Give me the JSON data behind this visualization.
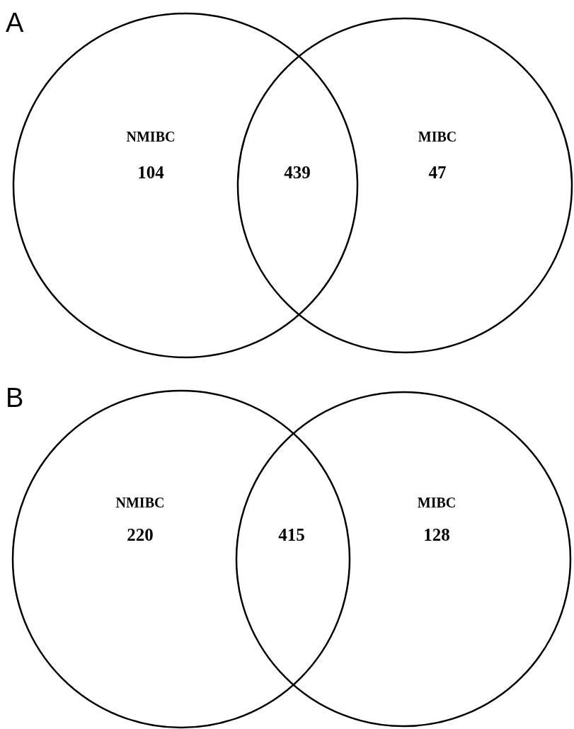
{
  "chart_data": [
    {
      "type": "other",
      "title": "A",
      "categories": [
        "NMIBC",
        null,
        "MIBC"
      ],
      "values": [
        104,
        439,
        47
      ],
      "data_labels": true
    },
    {
      "type": "other",
      "title": "B",
      "categories": [
        "NMIBC",
        null,
        "MIBC"
      ],
      "values": [
        220,
        415,
        128
      ],
      "data_labels": true
    }
  ]
}
